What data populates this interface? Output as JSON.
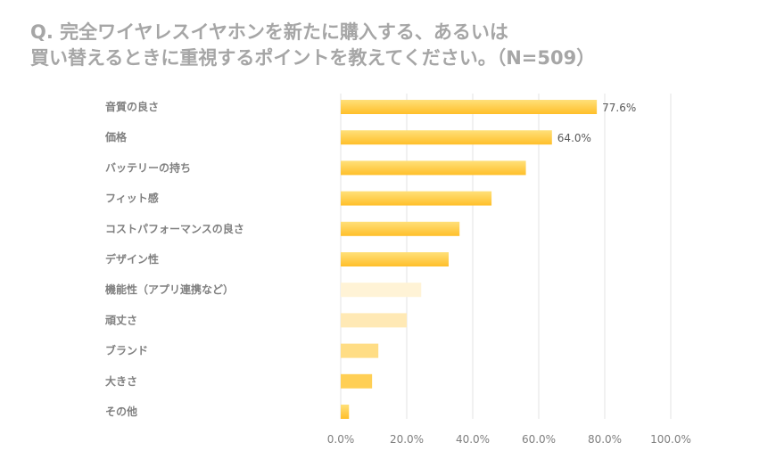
{
  "title_line1": "Q. 完全ワイヤレスイヤホンを新たに購入する、あるいは",
  "title_line2": "買い替えるときに重視するポイントを教えてください。（N=509）",
  "chart_data": {
    "type": "bar",
    "orientation": "horizontal",
    "title": "Q. 完全ワイヤレスイヤホンを新たに購入する、あるいは買い替えるときに重視するポイントを教えてください。（N=509）",
    "categories": [
      "音質の良さ",
      "価格",
      "バッテリーの持ち",
      "フィット感",
      "コストパフォーマンスの良さ",
      "デザイン性",
      "機能性（アプリ連携など）",
      "頑丈さ",
      "ブランド",
      "大きさ",
      "その他"
    ],
    "values": [
      77.6,
      64.0,
      56.1,
      45.7,
      36.0,
      32.7,
      24.4,
      20.0,
      11.4,
      9.5,
      2.5
    ],
    "data_labels": [
      "77.6%",
      "64.0%",
      null,
      null,
      null,
      null,
      null,
      null,
      null,
      null,
      null
    ],
    "bar_colors": [
      "#ffc632",
      "#ffc632",
      "#ffc632",
      "#ffc632",
      "#ffc632",
      "#ffc632",
      "#fff3d6",
      "#ffe9b5",
      "#ffdd85",
      "#ffcf55",
      "#ffc632"
    ],
    "xlim": [
      0,
      100
    ],
    "xticks": [
      "0.0%",
      "20.0%",
      "40.0%",
      "60.0%",
      "80.0%",
      "100.0%"
    ],
    "grid": true,
    "xlabel": "",
    "ylabel": ""
  }
}
